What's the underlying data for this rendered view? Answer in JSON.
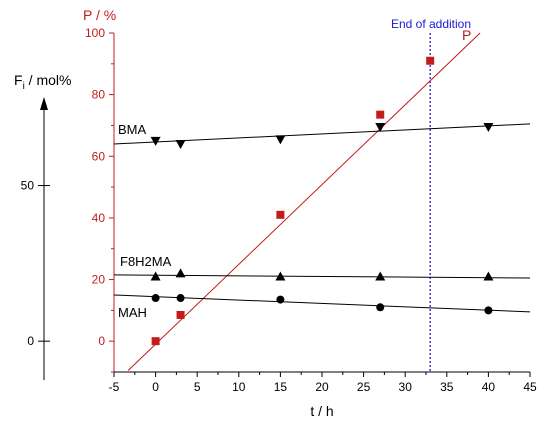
{
  "chart_data": {
    "type": "scatter",
    "xlabel": "t / h",
    "p_axis_label": "P / %",
    "f_axis_label": "F",
    "f_axis_label_sub": "i",
    "f_axis_label_unit": " / mol%",
    "xlim": [
      -5,
      45
    ],
    "ylim": [
      -10,
      100
    ],
    "x_ticks": [
      -5,
      0,
      5,
      10,
      15,
      20,
      25,
      30,
      35,
      40,
      45
    ],
    "x_tick_labels": [
      "-5",
      "0",
      "5",
      "10",
      "15",
      "20",
      "25",
      "30",
      "35",
      "40",
      "45"
    ],
    "p_ticks": [
      0,
      20,
      40,
      60,
      80,
      100
    ],
    "p_tick_labels": [
      "0",
      "20",
      "40",
      "60",
      "80",
      "100"
    ],
    "f_ticks": [
      0,
      50
    ],
    "f_tick_labels": [
      "0",
      "50"
    ],
    "f_axis_scale": "Fi 0 at P = 0, Fi 50 at P ≈ 50.5",
    "grid": false,
    "vline": {
      "x": 33,
      "label": "End of addition",
      "color": "#1a1ad6"
    },
    "series": [
      {
        "name": "P",
        "marker": "square",
        "color": "#c21d1d",
        "x": [
          0,
          3,
          15,
          27,
          33
        ],
        "y": [
          0,
          8.5,
          41,
          73.5,
          91
        ],
        "fit": {
          "x": [
            -3.3,
            39
          ],
          "y": [
            -9.5,
            100
          ]
        }
      },
      {
        "name": "BMA",
        "marker": "triangle-down",
        "color": "#000000",
        "x": [
          0,
          3,
          15,
          27,
          40
        ],
        "y": [
          65,
          64,
          65.5,
          69.5,
          69.5
        ],
        "fit": {
          "x": [
            -5,
            45
          ],
          "y": [
            64,
            70.5
          ]
        }
      },
      {
        "name": "F8H2MA",
        "marker": "triangle-up",
        "color": "#000000",
        "x": [
          0,
          3,
          15,
          27,
          40
        ],
        "y": [
          21,
          22,
          21,
          21,
          21
        ],
        "fit": {
          "x": [
            -5,
            45
          ],
          "y": [
            21.5,
            20.5
          ]
        }
      },
      {
        "name": "MAH",
        "marker": "circle",
        "color": "#000000",
        "x": [
          0,
          3,
          15,
          27,
          40
        ],
        "y": [
          14,
          14,
          13.5,
          11,
          10
        ],
        "fit": {
          "x": [
            -5,
            45
          ],
          "y": [
            15,
            9.5
          ]
        }
      }
    ]
  }
}
